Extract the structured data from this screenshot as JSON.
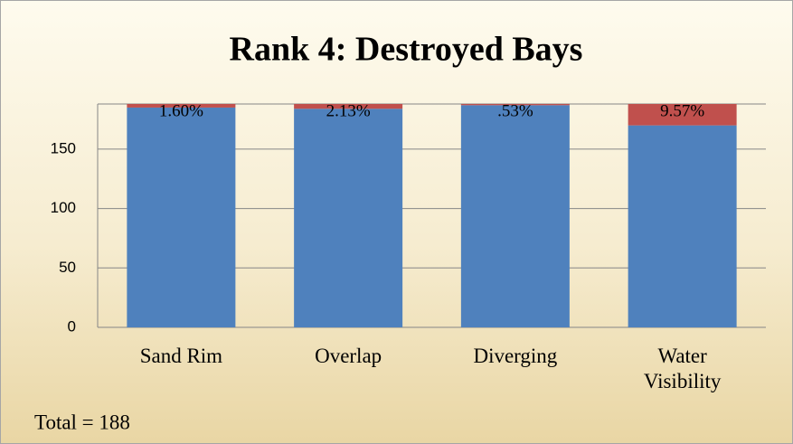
{
  "chart_data": {
    "type": "bar",
    "stacked": true,
    "title": "Rank 4: Destroyed Bays",
    "categories": [
      "Sand Rim",
      "Overlap",
      "Diverging",
      "Water Visibility"
    ],
    "series": [
      {
        "color": "#4f81bd",
        "values": [
          185,
          184,
          187,
          170
        ]
      },
      {
        "color": "#c0504d",
        "values": [
          3,
          4,
          1,
          18
        ],
        "value_labels": [
          "1.60%",
          "2.13%",
          ".53%",
          "9.57%"
        ]
      }
    ],
    "ylim": [
      0,
      188
    ],
    "yticks": [
      0,
      50,
      100,
      150
    ],
    "grid": true,
    "annotation": "Total = 188"
  }
}
